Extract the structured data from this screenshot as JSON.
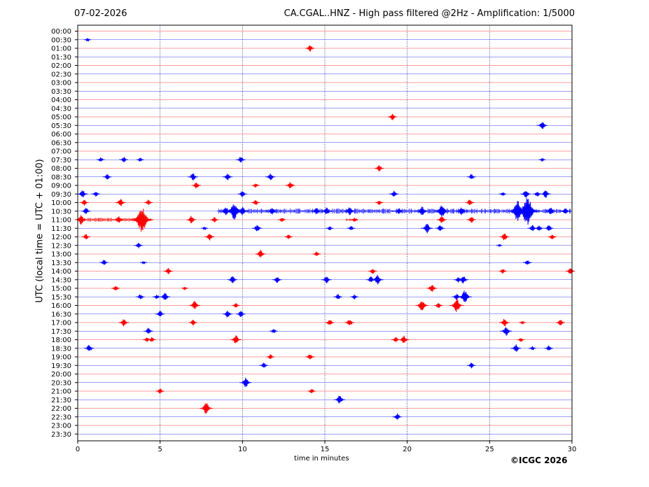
{
  "header": {
    "date": "07-02-2026",
    "title": "CA.CGAL..HNZ - High pass filtered @2Hz - Amplification: 1/5000"
  },
  "footer": {
    "copyright": "©ICGC 2026"
  },
  "colors": {
    "red_trace": "#ff0000",
    "blue_trace": "#0000ff",
    "axis": "#000000"
  },
  "chart_data": {
    "type": "helicorder",
    "xlabel": "time in minutes",
    "ylabel": "UTC (local time = UTC + 01:00)",
    "xlim": [
      0,
      30
    ],
    "xticks": [
      0,
      5,
      10,
      15,
      20,
      25,
      30
    ],
    "row_labels": [
      "00:00",
      "00:30",
      "01:00",
      "01:30",
      "02:00",
      "02:30",
      "03:00",
      "03:30",
      "04:00",
      "04:30",
      "05:00",
      "05:30",
      "06:00",
      "06:30",
      "07:00",
      "07:30",
      "08:00",
      "08:30",
      "09:00",
      "09:30",
      "10:00",
      "10:30",
      "11:00",
      "11:30",
      "12:00",
      "12:30",
      "13:00",
      "13:30",
      "14:00",
      "14:30",
      "15:00",
      "15:30",
      "16:00",
      "16:30",
      "17:00",
      "17:30",
      "18:00",
      "18:30",
      "19:00",
      "19:30",
      "20:00",
      "20:30",
      "21:00",
      "21:30",
      "22:00",
      "22:30",
      "23:00",
      "23:30"
    ],
    "row_colors": [
      "red",
      "blue"
    ],
    "grid_x": true,
    "events": [
      {
        "row": "00:30",
        "minute": 0.6,
        "amp": 0.2
      },
      {
        "row": "01:00",
        "minute": 14.1,
        "amp": 0.4
      },
      {
        "row": "05:00",
        "minute": 19.1,
        "amp": 0.4
      },
      {
        "row": "05:30",
        "minute": 28.2,
        "amp": 0.5
      },
      {
        "row": "07:30",
        "minute": 1.4,
        "amp": 0.3
      },
      {
        "row": "07:30",
        "minute": 2.8,
        "amp": 0.35
      },
      {
        "row": "07:30",
        "minute": 3.8,
        "amp": 0.25
      },
      {
        "row": "07:30",
        "minute": 9.9,
        "amp": 0.4
      },
      {
        "row": "07:30",
        "minute": 28.2,
        "amp": 0.2
      },
      {
        "row": "08:00",
        "minute": 18.3,
        "amp": 0.4
      },
      {
        "row": "08:30",
        "minute": 1.8,
        "amp": 0.35
      },
      {
        "row": "08:30",
        "minute": 7.0,
        "amp": 0.45
      },
      {
        "row": "08:30",
        "minute": 9.1,
        "amp": 0.45
      },
      {
        "row": "08:30",
        "minute": 11.7,
        "amp": 0.45
      },
      {
        "row": "08:30",
        "minute": 23.9,
        "amp": 0.35
      },
      {
        "row": "09:00",
        "minute": 7.2,
        "amp": 0.4
      },
      {
        "row": "09:00",
        "minute": 10.8,
        "amp": 0.3
      },
      {
        "row": "09:00",
        "minute": 12.9,
        "amp": 0.45
      },
      {
        "row": "09:30",
        "minute": 0.3,
        "amp": 0.5
      },
      {
        "row": "09:30",
        "minute": 1.1,
        "amp": 0.35
      },
      {
        "row": "09:30",
        "minute": 10.0,
        "amp": 0.4
      },
      {
        "row": "09:30",
        "minute": 19.2,
        "amp": 0.4
      },
      {
        "row": "09:30",
        "minute": 25.8,
        "amp": 0.25
      },
      {
        "row": "09:30",
        "minute": 27.2,
        "amp": 0.5
      },
      {
        "row": "09:30",
        "minute": 27.9,
        "amp": 0.35
      },
      {
        "row": "09:30",
        "minute": 28.4,
        "amp": 0.5
      },
      {
        "row": "10:00",
        "minute": 0.4,
        "amp": 0.35
      },
      {
        "row": "10:00",
        "minute": 2.6,
        "amp": 0.5
      },
      {
        "row": "10:00",
        "minute": 4.3,
        "amp": 0.35
      },
      {
        "row": "10:00",
        "minute": 10.8,
        "amp": 0.35
      },
      {
        "row": "10:00",
        "minute": 18.3,
        "amp": 0.3
      },
      {
        "row": "10:00",
        "minute": 23.8,
        "amp": 0.4
      },
      {
        "row": "10:30",
        "minute": 0.5,
        "amp": 0.4
      },
      {
        "row": "10:30",
        "minute": 9.0,
        "amp": 0.5
      },
      {
        "row": "10:30",
        "minute": 9.5,
        "amp": 1.0
      },
      {
        "row": "10:30",
        "minute": 10.0,
        "amp": 0.5
      },
      {
        "row": "10:30",
        "minute": 11.8,
        "amp": 0.45
      },
      {
        "row": "10:30",
        "minute": 14.5,
        "amp": 0.45
      },
      {
        "row": "10:30",
        "minute": 15.1,
        "amp": 0.45
      },
      {
        "row": "10:30",
        "minute": 16.5,
        "amp": 0.5
      },
      {
        "row": "10:30",
        "minute": 19.5,
        "amp": 0.35
      },
      {
        "row": "10:30",
        "minute": 20.9,
        "amp": 0.6
      },
      {
        "row": "10:30",
        "minute": 22.1,
        "amp": 0.8
      },
      {
        "row": "10:30",
        "minute": 23.3,
        "amp": 0.5
      },
      {
        "row": "10:30",
        "minute": 26.7,
        "amp": 1.2
      },
      {
        "row": "10:30",
        "minute": 27.3,
        "amp": 1.6
      },
      {
        "row": "10:30",
        "minute": 28.7,
        "amp": 0.45
      },
      {
        "row": "10:30",
        "minute": 29.6,
        "amp": 0.4
      },
      {
        "row": "11:00",
        "minute": 0.2,
        "amp": 0.6
      },
      {
        "row": "11:00",
        "minute": 2.5,
        "amp": 0.4
      },
      {
        "row": "11:00",
        "minute": 3.9,
        "amp": 1.5
      },
      {
        "row": "11:00",
        "minute": 6.9,
        "amp": 0.45
      },
      {
        "row": "11:00",
        "minute": 8.3,
        "amp": 0.35
      },
      {
        "row": "11:00",
        "minute": 12.4,
        "amp": 0.3
      },
      {
        "row": "11:00",
        "minute": 16.8,
        "amp": 0.25
      },
      {
        "row": "11:00",
        "minute": 22.1,
        "amp": 0.45
      },
      {
        "row": "11:00",
        "minute": 23.9,
        "amp": 0.4
      },
      {
        "row": "11:30",
        "minute": 7.7,
        "amp": 0.2
      },
      {
        "row": "11:30",
        "minute": 10.9,
        "amp": 0.45
      },
      {
        "row": "11:30",
        "minute": 15.3,
        "amp": 0.25
      },
      {
        "row": "11:30",
        "minute": 16.6,
        "amp": 0.3
      },
      {
        "row": "11:30",
        "minute": 21.2,
        "amp": 0.6
      },
      {
        "row": "11:30",
        "minute": 22.0,
        "amp": 0.4
      },
      {
        "row": "11:30",
        "minute": 27.6,
        "amp": 0.4
      },
      {
        "row": "11:30",
        "minute": 28.0,
        "amp": 0.4
      },
      {
        "row": "11:30",
        "minute": 28.6,
        "amp": 0.4
      },
      {
        "row": "12:00",
        "minute": 0.5,
        "amp": 0.35
      },
      {
        "row": "12:00",
        "minute": 8.0,
        "amp": 0.45
      },
      {
        "row": "12:00",
        "minute": 12.8,
        "amp": 0.3
      },
      {
        "row": "12:00",
        "minute": 25.9,
        "amp": 0.45
      },
      {
        "row": "12:00",
        "minute": 28.8,
        "amp": 0.35
      },
      {
        "row": "12:30",
        "minute": 3.7,
        "amp": 0.35
      },
      {
        "row": "12:30",
        "minute": 25.6,
        "amp": 0.15
      },
      {
        "row": "13:00",
        "minute": 11.1,
        "amp": 0.5
      },
      {
        "row": "13:00",
        "minute": 14.5,
        "amp": 0.3
      },
      {
        "row": "13:30",
        "minute": 1.6,
        "amp": 0.35
      },
      {
        "row": "13:30",
        "minute": 4.0,
        "amp": 0.2
      },
      {
        "row": "13:30",
        "minute": 27.3,
        "amp": 0.35
      },
      {
        "row": "14:00",
        "minute": 5.5,
        "amp": 0.4
      },
      {
        "row": "14:00",
        "minute": 17.9,
        "amp": 0.35
      },
      {
        "row": "14:00",
        "minute": 25.8,
        "amp": 0.3
      },
      {
        "row": "14:00",
        "minute": 29.9,
        "amp": 0.4
      },
      {
        "row": "14:30",
        "minute": 9.4,
        "amp": 0.45
      },
      {
        "row": "14:30",
        "minute": 12.1,
        "amp": 0.4
      },
      {
        "row": "14:30",
        "minute": 15.1,
        "amp": 0.45
      },
      {
        "row": "14:30",
        "minute": 17.8,
        "amp": 0.4
      },
      {
        "row": "14:30",
        "minute": 18.2,
        "amp": 0.6
      },
      {
        "row": "14:30",
        "minute": 23.1,
        "amp": 0.35
      },
      {
        "row": "14:30",
        "minute": 23.4,
        "amp": 0.5
      },
      {
        "row": "15:00",
        "minute": 2.3,
        "amp": 0.35
      },
      {
        "row": "15:00",
        "minute": 6.5,
        "amp": 0.2
      },
      {
        "row": "15:00",
        "minute": 21.5,
        "amp": 0.5
      },
      {
        "row": "15:30",
        "minute": 3.8,
        "amp": 0.35
      },
      {
        "row": "15:30",
        "minute": 4.8,
        "amp": 0.3
      },
      {
        "row": "15:30",
        "minute": 5.3,
        "amp": 0.5
      },
      {
        "row": "15:30",
        "minute": 15.8,
        "amp": 0.35
      },
      {
        "row": "15:30",
        "minute": 16.8,
        "amp": 0.3
      },
      {
        "row": "15:30",
        "minute": 23.0,
        "amp": 0.4
      },
      {
        "row": "15:30",
        "minute": 23.5,
        "amp": 0.8
      },
      {
        "row": "16:00",
        "minute": 7.1,
        "amp": 0.55
      },
      {
        "row": "16:00",
        "minute": 9.6,
        "amp": 0.3
      },
      {
        "row": "16:00",
        "minute": 20.9,
        "amp": 0.7
      },
      {
        "row": "16:00",
        "minute": 21.9,
        "amp": 0.35
      },
      {
        "row": "16:00",
        "minute": 23.0,
        "amp": 0.8
      },
      {
        "row": "16:30",
        "minute": 5.0,
        "amp": 0.4
      },
      {
        "row": "16:30",
        "minute": 9.1,
        "amp": 0.45
      },
      {
        "row": "16:30",
        "minute": 9.9,
        "amp": 0.4
      },
      {
        "row": "17:00",
        "minute": 2.8,
        "amp": 0.5
      },
      {
        "row": "17:00",
        "minute": 7.0,
        "amp": 0.35
      },
      {
        "row": "17:00",
        "minute": 15.3,
        "amp": 0.4
      },
      {
        "row": "17:00",
        "minute": 16.5,
        "amp": 0.45
      },
      {
        "row": "17:00",
        "minute": 25.9,
        "amp": 0.5
      },
      {
        "row": "17:00",
        "minute": 27.0,
        "amp": 0.2
      },
      {
        "row": "17:00",
        "minute": 29.3,
        "amp": 0.4
      },
      {
        "row": "17:30",
        "minute": 4.3,
        "amp": 0.4
      },
      {
        "row": "17:30",
        "minute": 11.9,
        "amp": 0.3
      },
      {
        "row": "17:30",
        "minute": 26.0,
        "amp": 0.6
      },
      {
        "row": "18:00",
        "minute": 4.2,
        "amp": 0.3
      },
      {
        "row": "18:00",
        "minute": 4.5,
        "amp": 0.3
      },
      {
        "row": "18:00",
        "minute": 9.6,
        "amp": 0.55
      },
      {
        "row": "18:00",
        "minute": 19.3,
        "amp": 0.35
      },
      {
        "row": "18:00",
        "minute": 19.8,
        "amp": 0.5
      },
      {
        "row": "18:00",
        "minute": 26.9,
        "amp": 0.25
      },
      {
        "row": "18:30",
        "minute": 0.7,
        "amp": 0.45
      },
      {
        "row": "18:30",
        "minute": 26.6,
        "amp": 0.5
      },
      {
        "row": "18:30",
        "minute": 27.6,
        "amp": 0.25
      },
      {
        "row": "18:30",
        "minute": 28.6,
        "amp": 0.35
      },
      {
        "row": "19:00",
        "minute": 11.7,
        "amp": 0.3
      },
      {
        "row": "19:00",
        "minute": 14.1,
        "amp": 0.4
      },
      {
        "row": "19:30",
        "minute": 11.3,
        "amp": 0.35
      },
      {
        "row": "19:30",
        "minute": 23.9,
        "amp": 0.35
      },
      {
        "row": "20:30",
        "minute": 10.2,
        "amp": 0.6
      },
      {
        "row": "21:00",
        "minute": 5.0,
        "amp": 0.35
      },
      {
        "row": "21:00",
        "minute": 14.2,
        "amp": 0.3
      },
      {
        "row": "21:30",
        "minute": 15.9,
        "amp": 0.55
      },
      {
        "row": "22:00",
        "minute": 7.8,
        "amp": 0.7
      },
      {
        "row": "22:30",
        "minute": 19.4,
        "amp": 0.4
      }
    ],
    "bursts": [
      {
        "row": "10:30",
        "from": 8.5,
        "to": 30.0,
        "amp": 0.25
      },
      {
        "row": "11:00",
        "from": 0.0,
        "to": 4.5,
        "amp": 0.2
      },
      {
        "row": "11:00",
        "from": 16.3,
        "to": 17.0,
        "amp": 0.15
      }
    ]
  }
}
